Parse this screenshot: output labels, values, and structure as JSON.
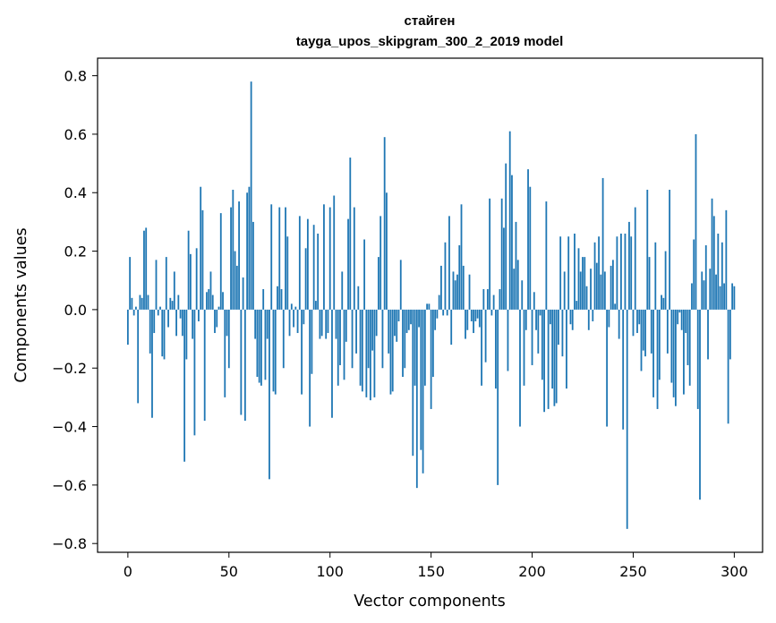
{
  "chart_data": {
    "type": "bar",
    "title_line1": "стайген",
    "title_line2": "tayga_upos_skipgram_300_2_2019 model",
    "xlabel": "Vector components",
    "ylabel": "Components values",
    "xlim": [
      -15,
      314
    ],
    "ylim": [
      -0.83,
      0.86
    ],
    "x_ticks": [
      0,
      50,
      100,
      150,
      200,
      250,
      300
    ],
    "y_ticks": [
      -0.8,
      -0.6,
      -0.4,
      -0.2,
      0.0,
      0.2,
      0.4,
      0.6,
      0.8
    ],
    "y_tick_labels": [
      "−0.8",
      "−0.6",
      "−0.4",
      "−0.2",
      "0.0",
      "0.2",
      "0.4",
      "0.6",
      "0.8"
    ],
    "bar_color": "#1f77b4",
    "grid": false,
    "values": [
      -0.12,
      0.18,
      0.04,
      -0.02,
      0.01,
      -0.32,
      0.05,
      0.04,
      0.27,
      0.28,
      0.05,
      -0.15,
      -0.37,
      -0.08,
      0.17,
      -0.02,
      0.01,
      -0.16,
      -0.17,
      0.18,
      -0.06,
      0.04,
      0.03,
      0.13,
      -0.09,
      0.05,
      -0.03,
      -0.09,
      -0.52,
      -0.17,
      0.27,
      0.19,
      -0.1,
      -0.43,
      0.21,
      -0.04,
      0.42,
      0.34,
      -0.38,
      0.06,
      0.07,
      0.13,
      0.05,
      -0.08,
      -0.06,
      0.01,
      0.33,
      0.06,
      -0.3,
      -0.09,
      -0.2,
      0.35,
      0.41,
      0.2,
      0.15,
      0.37,
      -0.36,
      0.11,
      -0.38,
      0.4,
      0.42,
      0.78,
      0.3,
      -0.1,
      -0.23,
      -0.25,
      -0.26,
      0.07,
      -0.24,
      -0.1,
      -0.58,
      0.36,
      -0.28,
      -0.29,
      0.08,
      0.35,
      0.07,
      -0.2,
      0.35,
      0.25,
      -0.09,
      0.02,
      -0.06,
      0.01,
      -0.08,
      0.32,
      -0.29,
      -0.05,
      0.21,
      0.31,
      -0.4,
      -0.22,
      0.29,
      0.03,
      0.26,
      -0.1,
      -0.09,
      0.36,
      -0.1,
      -0.08,
      0.35,
      -0.37,
      0.39,
      -0.1,
      -0.26,
      -0.19,
      0.13,
      -0.24,
      -0.11,
      0.31,
      0.52,
      -0.2,
      0.35,
      -0.15,
      0.08,
      -0.26,
      -0.28,
      0.24,
      -0.3,
      -0.2,
      -0.31,
      -0.14,
      -0.3,
      -0.09,
      0.18,
      0.32,
      -0.2,
      0.59,
      0.4,
      -0.15,
      -0.29,
      -0.28,
      -0.09,
      -0.11,
      -0.04,
      0.17,
      -0.23,
      -0.2,
      -0.08,
      -0.07,
      -0.05,
      -0.5,
      -0.26,
      -0.61,
      -0.06,
      -0.48,
      -0.56,
      -0.26,
      0.02,
      0.02,
      -0.34,
      -0.23,
      -0.07,
      -0.03,
      0.05,
      0.15,
      -0.02,
      0.23,
      -0.02,
      0.32,
      -0.12,
      0.13,
      0.1,
      0.12,
      0.22,
      0.36,
      0.15,
      -0.1,
      -0.07,
      0.12,
      -0.04,
      -0.08,
      -0.04,
      -0.03,
      -0.06,
      -0.26,
      0.07,
      -0.18,
      0.07,
      0.38,
      -0.02,
      0.05,
      -0.27,
      -0.6,
      0.07,
      0.38,
      0.28,
      0.5,
      -0.21,
      0.61,
      0.46,
      0.14,
      0.3,
      0.17,
      -0.4,
      0.1,
      -0.26,
      -0.07,
      0.48,
      0.42,
      -0.19,
      0.06,
      -0.07,
      -0.15,
      -0.02,
      -0.24,
      -0.35,
      0.37,
      -0.34,
      -0.05,
      -0.27,
      -0.33,
      -0.32,
      -0.12,
      0.25,
      -0.16,
      0.13,
      -0.27,
      0.25,
      -0.05,
      -0.07,
      0.26,
      0.03,
      0.21,
      0.13,
      0.18,
      0.18,
      0.08,
      -0.07,
      0.14,
      -0.04,
      0.23,
      0.16,
      0.25,
      0.12,
      0.45,
      0.13,
      -0.4,
      -0.06,
      0.15,
      0.17,
      0.02,
      0.25,
      -0.1,
      0.26,
      -0.41,
      0.26,
      -0.75,
      0.3,
      0.25,
      -0.09,
      0.35,
      -0.08,
      -0.05,
      -0.21,
      -0.14,
      -0.16,
      0.41,
      0.18,
      -0.15,
      -0.3,
      0.23,
      -0.34,
      -0.24,
      0.05,
      0.04,
      0.2,
      -0.15,
      0.41,
      -0.25,
      -0.3,
      -0.33,
      -0.05,
      -0.01,
      -0.07,
      -0.29,
      -0.08,
      -0.19,
      -0.26,
      0.09,
      0.24,
      0.6,
      -0.34,
      -0.65,
      0.13,
      0.1,
      0.22,
      -0.17,
      0.14,
      0.38,
      0.32,
      0.12,
      0.26,
      0.08,
      0.23,
      0.09,
      0.34,
      -0.39,
      -0.17,
      0.09,
      0.08
    ]
  }
}
